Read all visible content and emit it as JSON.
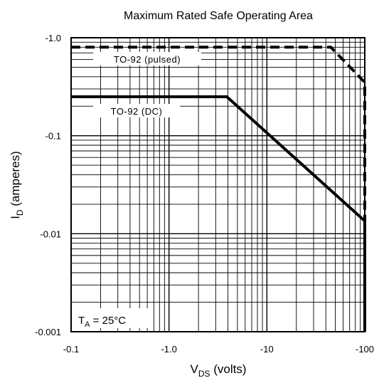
{
  "chart_data": {
    "type": "line",
    "title": "Maximum Rated Safe Operating Area",
    "xlabel": {
      "main": "V",
      "sub": "DS",
      "rest": " (volts)"
    },
    "ylabel": {
      "main": "I",
      "sub": "D",
      "rest": " (amperes)"
    },
    "x_scale": "log",
    "y_scale": "log",
    "xlim": [
      -0.1,
      -100
    ],
    "ylim": [
      -0.001,
      -1.0
    ],
    "x_ticks": [
      {
        "value": -0.1,
        "label": "-0.1"
      },
      {
        "value": -1.0,
        "label": "-1.0"
      },
      {
        "value": -10,
        "label": "-10"
      },
      {
        "value": -100,
        "label": "-100"
      }
    ],
    "y_ticks": [
      {
        "value": -0.001,
        "label": "-0.001"
      },
      {
        "value": -0.01,
        "label": "-0.01"
      },
      {
        "value": -0.1,
        "label": "-0.1"
      },
      {
        "value": -1.0,
        "label": "-1.0"
      }
    ],
    "grid": true,
    "series": [
      {
        "name": "TO-92 (pulsed)",
        "style": "dashed",
        "x": [
          -0.1,
          -45,
          -100,
          -100
        ],
        "y": [
          -0.8,
          -0.8,
          -0.35,
          -0.001
        ]
      },
      {
        "name": "TO-92 (DC)",
        "style": "solid",
        "x": [
          -0.1,
          -3.9,
          -100,
          -100
        ],
        "y": [
          -0.25,
          -0.25,
          -0.0135,
          -0.001
        ]
      }
    ],
    "annotations": [
      {
        "main": "T",
        "sub": "A",
        "rest": " = 25°C"
      }
    ]
  }
}
